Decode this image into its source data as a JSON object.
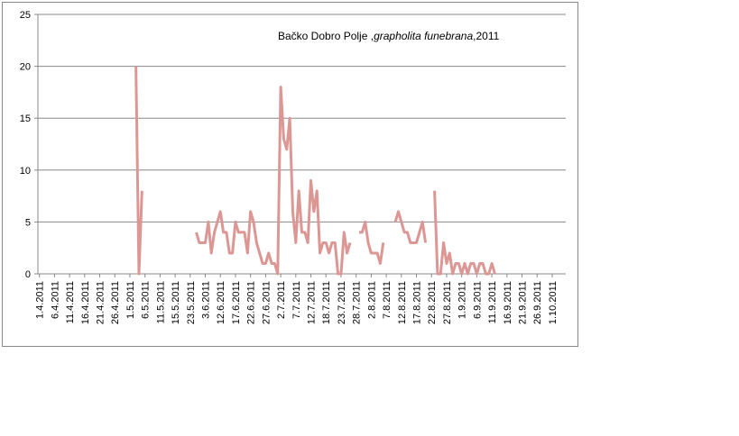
{
  "chart_data": {
    "type": "line",
    "title": [
      "Bačko Dobro Polje ,",
      "grapholita funebrana",
      ",2011"
    ],
    "categories": [
      "1.4.2011",
      null,
      null,
      null,
      null,
      "6.4.2011",
      null,
      null,
      null,
      null,
      "11.4.2011",
      null,
      null,
      null,
      null,
      "16.4.2011",
      null,
      null,
      null,
      null,
      "21.4.2011",
      null,
      null,
      null,
      null,
      "26.4.2011",
      null,
      null,
      null,
      null,
      "1.5.2011",
      null,
      null,
      null,
      null,
      "6.5.2011",
      null,
      null,
      null,
      null,
      "11.5.2011",
      null,
      null,
      null,
      null,
      "15.5.2011",
      null,
      null,
      null,
      null,
      "23.5.2011",
      null,
      null,
      null,
      null,
      "3.6.2011",
      null,
      null,
      null,
      null,
      "12.6.2011",
      null,
      null,
      null,
      null,
      "17.6.2011",
      null,
      null,
      null,
      null,
      "22.6.2011",
      null,
      null,
      null,
      null,
      "27.6.2011",
      null,
      null,
      null,
      null,
      "2.7.2011",
      null,
      null,
      null,
      null,
      "7.7.2011",
      null,
      null,
      null,
      null,
      "12.7.2011",
      null,
      null,
      null,
      null,
      "18.7.2011",
      null,
      null,
      null,
      null,
      "23.7.2011",
      null,
      null,
      null,
      null,
      "28.7.2011",
      null,
      null,
      null,
      null,
      "2.8.2011",
      null,
      null,
      null,
      null,
      "7.8.2011",
      null,
      null,
      null,
      null,
      "12.8.2011",
      null,
      null,
      null,
      null,
      "17.8.2011",
      null,
      null,
      null,
      null,
      "22.8.2011",
      null,
      null,
      null,
      null,
      "27.8.2011",
      null,
      null,
      null,
      null,
      "1.9.2011",
      null,
      null,
      null,
      null,
      "6.9.2011",
      null,
      null,
      null,
      null,
      "11.9.2011",
      null,
      null,
      null,
      null,
      "16.9.2011",
      null,
      null,
      null,
      null,
      "21.9.2011",
      null,
      null,
      null,
      null,
      "26.9.2011",
      null,
      null,
      null,
      null,
      "1.10.2011",
      null,
      null,
      null,
      null
    ],
    "series": [
      {
        "name": "grapholita funebrana",
        "color": "#dc9795",
        "values": [
          null,
          null,
          null,
          null,
          null,
          null,
          null,
          null,
          null,
          null,
          null,
          null,
          null,
          null,
          null,
          null,
          null,
          null,
          null,
          null,
          null,
          null,
          null,
          null,
          null,
          null,
          null,
          null,
          null,
          null,
          null,
          null,
          20,
          0,
          8,
          null,
          null,
          null,
          null,
          null,
          null,
          null,
          null,
          null,
          null,
          null,
          null,
          null,
          null,
          null,
          null,
          null,
          4,
          3,
          3,
          3,
          5,
          2,
          4,
          5,
          6,
          4,
          4,
          2,
          2,
          5,
          4,
          4,
          4,
          2,
          6,
          5,
          3,
          2,
          1,
          1,
          2,
          1,
          1,
          0,
          18,
          13,
          12,
          15,
          6,
          3,
          8,
          4,
          4,
          3,
          9,
          6,
          8,
          2,
          3,
          3,
          2,
          3,
          3,
          0,
          0,
          4,
          2,
          3,
          null,
          null,
          4,
          4,
          5,
          3,
          2,
          2,
          2,
          1,
          3,
          null,
          null,
          null,
          5,
          6,
          5,
          4,
          4,
          3,
          3,
          3,
          4,
          5,
          3,
          null,
          null,
          8,
          0,
          0,
          3,
          1,
          2,
          0,
          1,
          1,
          0,
          1,
          0,
          1,
          1,
          0,
          1,
          1,
          0,
          0,
          1,
          0,
          null,
          null,
          null,
          null,
          null,
          null,
          null,
          null,
          null,
          null,
          null,
          null,
          null,
          null,
          null,
          null,
          null,
          null,
          null,
          null,
          null,
          null,
          null
        ]
      }
    ],
    "ylim": [
      0,
      25
    ],
    "yticks": [
      0,
      5,
      10,
      15,
      20,
      25
    ],
    "grid": true
  }
}
